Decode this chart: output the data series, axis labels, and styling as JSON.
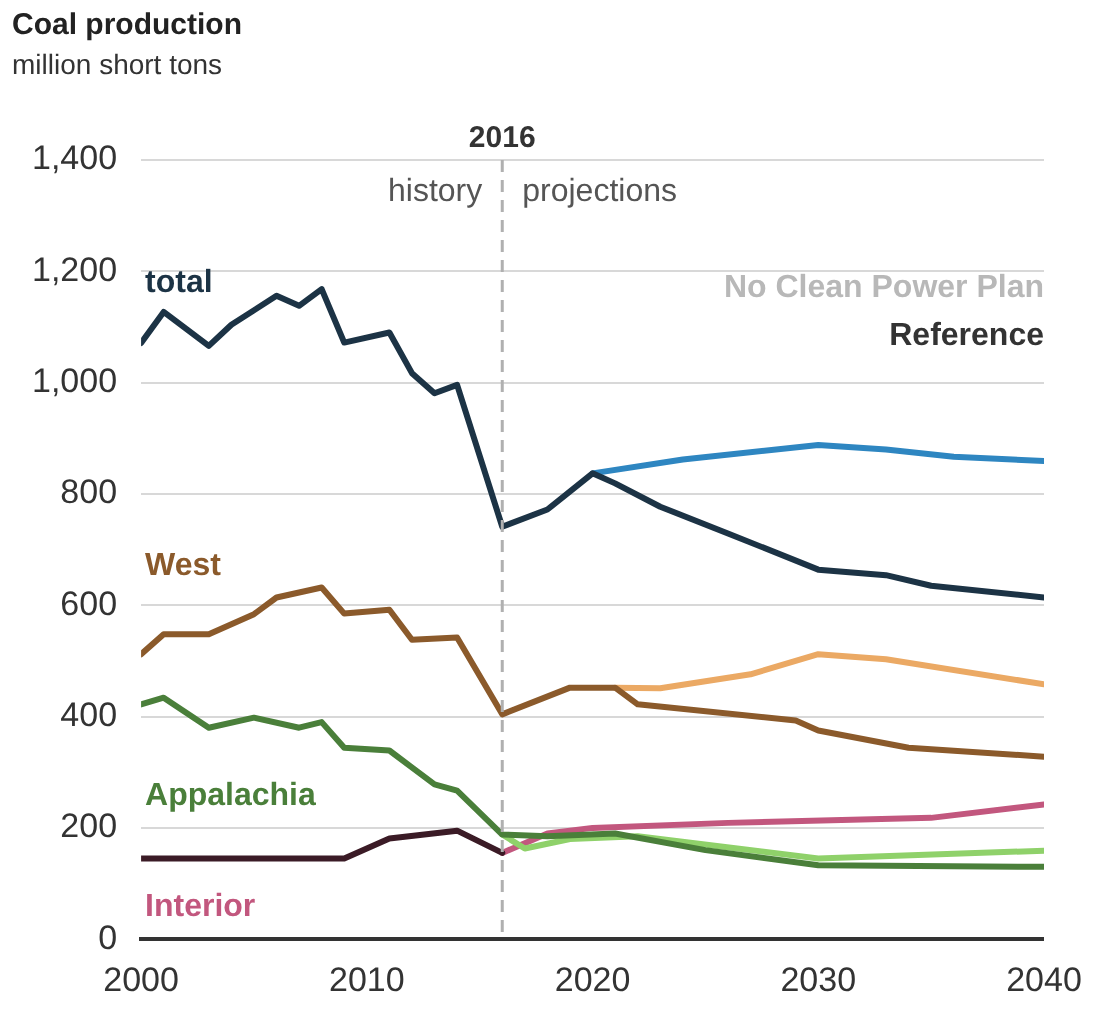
{
  "chart_data": {
    "type": "line",
    "title": "Coal production",
    "subtitle": "million short tons",
    "xlim": [
      2000,
      2040
    ],
    "xticks": [
      2000,
      2010,
      2020,
      2030,
      2040
    ],
    "ylim": [
      0,
      1400
    ],
    "yticks": [
      {
        "value": 0,
        "label": "0"
      },
      {
        "value": 200,
        "label": "200"
      },
      {
        "value": 400,
        "label": "400"
      },
      {
        "value": 600,
        "label": "600"
      },
      {
        "value": 800,
        "label": "800"
      },
      {
        "value": 1000,
        "label": "1,000"
      },
      {
        "value": 1200,
        "label": "1,200"
      },
      {
        "value": 1400,
        "label": "1,400"
      }
    ],
    "grid": "y",
    "legend": false,
    "marker": "none",
    "line_style": "solid",
    "ref_lines": [
      {
        "axis": "x",
        "value": 2016,
        "label": "2016",
        "line_style": "dashed",
        "color": "#b0b0b0"
      }
    ],
    "annotations": [
      "history",
      "projections",
      "No Clean Power Plan",
      "Reference"
    ],
    "series": [
      {
        "name": "total",
        "color": "#1c3345",
        "x": [
          2000,
          2001,
          2003,
          2004,
          2006,
          2007,
          2008,
          2009,
          2011,
          2012,
          2013,
          2014,
          2016,
          2018,
          2020,
          2021,
          2023,
          2026,
          2030,
          2033,
          2035,
          2040
        ],
        "values": [
          1071,
          1127,
          1066,
          1104,
          1156,
          1138,
          1168,
          1072,
          1090,
          1017,
          981,
          996,
          741,
          772,
          837,
          819,
          777,
          729,
          664,
          654,
          635,
          614
        ]
      },
      {
        "color": "#2e86c1",
        "x": [
          2020,
          2024,
          2030,
          2033,
          2036,
          2040
        ],
        "values": [
          837,
          862,
          888,
          880,
          867,
          859
        ]
      },
      {
        "name": "West",
        "color": "#8b5a2b",
        "x": [
          2000,
          2001,
          2003,
          2005,
          2006,
          2008,
          2009,
          2011,
          2012,
          2014,
          2016,
          2019,
          2021,
          2022,
          2029,
          2030,
          2034,
          2040
        ],
        "values": [
          512,
          548,
          548,
          584,
          614,
          632,
          585,
          592,
          538,
          542,
          404,
          452,
          452,
          422,
          393,
          375,
          344,
          328
        ]
      },
      {
        "color": "#eba964",
        "x": [
          2021,
          2023,
          2027,
          2030,
          2033,
          2040
        ],
        "values": [
          452,
          451,
          476,
          512,
          503,
          458
        ]
      },
      {
        "name": "Appalachia",
        "color": "#4a7f3a",
        "x": [
          2000,
          2001,
          2003,
          2005,
          2007,
          2008,
          2009,
          2011,
          2013,
          2014,
          2016,
          2018,
          2021,
          2025,
          2030,
          2040
        ],
        "values": [
          422,
          434,
          380,
          398,
          380,
          390,
          344,
          339,
          278,
          267,
          188,
          185,
          190,
          160,
          133,
          130
        ]
      },
      {
        "color": "#8fd16a",
        "x": [
          2016,
          2017,
          2019,
          2022,
          2030,
          2040
        ],
        "values": [
          188,
          163,
          180,
          185,
          145,
          159
        ]
      },
      {
        "color": "#3b1b26",
        "x": [
          2000,
          2009,
          2011,
          2014,
          2016
        ],
        "values": [
          145,
          145,
          181,
          195,
          155
        ]
      },
      {
        "name": "Interior",
        "color": "#c2577e",
        "x": [
          2016,
          2018,
          2020,
          2026,
          2035,
          2040
        ],
        "values": [
          155,
          190,
          200,
          209,
          218,
          242
        ]
      }
    ]
  }
}
